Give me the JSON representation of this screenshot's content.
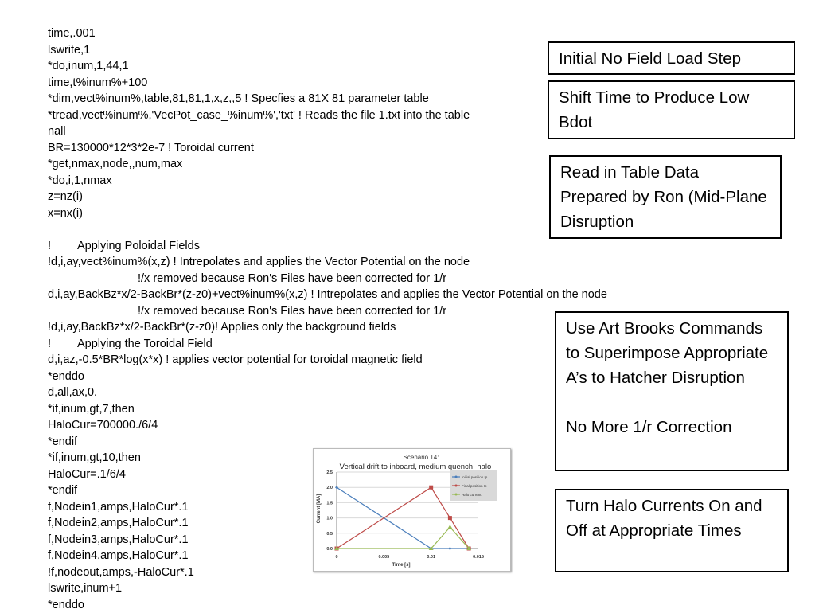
{
  "code_lines": [
    {
      "text": "time,.001"
    },
    {
      "text": "lswrite,1"
    },
    {
      "text": "*do,inum,1,44,1"
    },
    {
      "text": "time,t%inum%+100"
    },
    {
      "text": "*dim,vect%inum%,table,81,81,1,x,z,,5 ! Specfies a 81X 81 parameter table"
    },
    {
      "text": "*tread,vect%inum%,'VecPot_case_%inum%','txt' ! Reads the file 1.txt into the table"
    },
    {
      "text": "nall"
    },
    {
      "text": "BR=130000*12*3*2e-7 ! Toroidal current"
    },
    {
      "text": "*get,nmax,node,,num,max"
    },
    {
      "text": "*do,i,1,nmax"
    },
    {
      "text": "z=nz(i)"
    },
    {
      "text": "x=nx(i)"
    },
    {
      "text": ""
    },
    {
      "prefix": "!",
      "text": "Applying Poloidal Fields"
    },
    {
      "text": "!d,i,ay,vect%inum%(x,z) ! Intrepolates and applies the Vector Potential on the node"
    },
    {
      "indent": true,
      "text": "!/x removed because Ron's Files have been corrected for 1/r"
    },
    {
      "text": "d,i,ay,BackBz*x/2-BackBr*(z-z0)+vect%inum%(x,z) ! Intrepolates and applies the Vector Potential on the node"
    },
    {
      "indent": true,
      "text": "!/x removed because Ron's Files have been corrected for 1/r"
    },
    {
      "text": "!d,i,ay,BackBz*x/2-BackBr*(z-z0)! Applies only the background fields"
    },
    {
      "prefix": "!",
      "text": "Applying the Toroidal Field"
    },
    {
      "text": "d,i,az,-0.5*BR*log(x*x) ! applies vector potential for toroidal magnetic field"
    },
    {
      "text": "*enddo"
    },
    {
      "text": "d,all,ax,0."
    },
    {
      "text": "*if,inum,gt,7,then"
    },
    {
      "text": "HaloCur=700000./6/4"
    },
    {
      "text": "*endif"
    },
    {
      "text": "*if,inum,gt,10,then"
    },
    {
      "text": "HaloCur=.1/6/4"
    },
    {
      "text": "*endif"
    },
    {
      "text": "f,Nodein1,amps,HaloCur*.1"
    },
    {
      "text": "f,Nodein2,amps,HaloCur*.1"
    },
    {
      "text": "f,Nodein3,amps,HaloCur*.1"
    },
    {
      "text": "f,Nodein4,amps,HaloCur*.1"
    },
    {
      "text": "!f,nodeout,amps,-HaloCur*.1"
    },
    {
      "text": "lswrite,inum+1"
    },
    {
      "text": "*enddo"
    }
  ],
  "notes": [
    "Initial No Field Load Step",
    "Shift Time to Produce Low Bdot",
    "Read in Table Data Prepared by Ron (Mid-Plane Disruption",
    "Use Art Brooks Commands to Superimpose Appropriate A’s to Hatcher Disruption",
    "No More 1/r Correction",
    "Turn Halo Currents On and Off at Appropriate Times"
  ],
  "chart_data": {
    "type": "line",
    "title": "Scenario 14:",
    "subtitle": "Vertical drift to inboard, medium quench, halo",
    "xlabel": "Time [s]",
    "ylabel": "Current [MA]",
    "xlim": [
      0,
      0.015
    ],
    "ylim": [
      0,
      2.5
    ],
    "xticks": [
      "0",
      "0.005",
      "0.01",
      "0.015"
    ],
    "yticks": [
      "0.0",
      "0.5",
      "1.0",
      "1.5",
      "2.0",
      "2.5"
    ],
    "grid": true,
    "legend": "top-right",
    "series": [
      {
        "name": "Initial position Ip",
        "color": "#4a7ebb",
        "marker": "diamond",
        "x": [
          0,
          0.01,
          0.012,
          0.014
        ],
        "y": [
          2,
          0,
          0,
          0
        ]
      },
      {
        "name": "Final position Ip",
        "color": "#be4b48",
        "marker": "square",
        "x": [
          0,
          0.01,
          0.012,
          0.014
        ],
        "y": [
          0,
          2,
          1,
          0
        ]
      },
      {
        "name": "Halo current",
        "color": "#98b954",
        "marker": "triangle",
        "x": [
          0,
          0.01,
          0.012,
          0.014
        ],
        "y": [
          0,
          0,
          0.7,
          0
        ]
      }
    ]
  }
}
